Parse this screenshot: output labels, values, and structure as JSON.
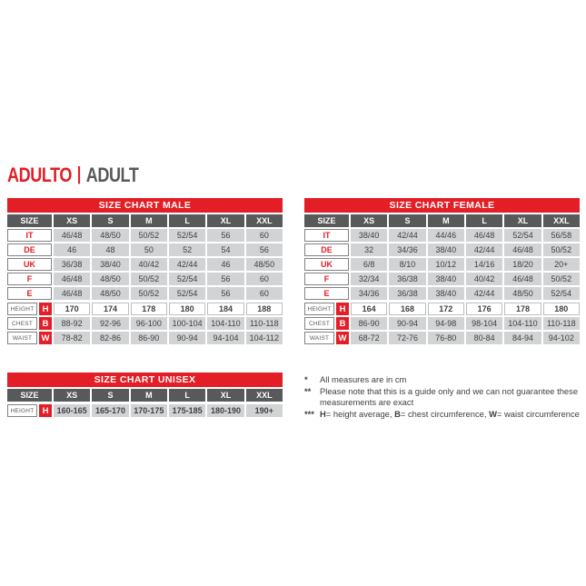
{
  "page": {
    "title_primary": "ADULTO",
    "title_separator": "|",
    "title_secondary": "ADULT"
  },
  "colors": {
    "accent_red": "#e31e26",
    "header_gray": "#58595b",
    "cell_gray": "#d1d3d4",
    "text_dark": "#414042"
  },
  "tables": [
    {
      "id": "male",
      "title": "SIZE CHART MALE",
      "size_label": "SIZE",
      "columns": [
        "XS",
        "S",
        "M",
        "L",
        "XL",
        "XXL"
      ],
      "region_rows": [
        {
          "label": "IT",
          "values": [
            "46/48",
            "48/50",
            "50/52",
            "52/54",
            "56",
            "60"
          ]
        },
        {
          "label": "DE",
          "values": [
            "46",
            "48",
            "50",
            "52",
            "54",
            "56"
          ]
        },
        {
          "label": "UK",
          "values": [
            "36/38",
            "38/40",
            "40/42",
            "42/44",
            "46",
            "48/50"
          ]
        },
        {
          "label": "F",
          "values": [
            "46/48",
            "48/50",
            "50/52",
            "52/54",
            "56",
            "60"
          ]
        },
        {
          "label": "E",
          "values": [
            "46/48",
            "48/50",
            "50/52",
            "52/54",
            "56",
            "60"
          ]
        }
      ],
      "measure_rows": [
        {
          "label": "HEIGHT",
          "letter": "H",
          "variant": "white-bold",
          "values": [
            "170",
            "174",
            "178",
            "180",
            "184",
            "188"
          ]
        },
        {
          "label": "CHEST",
          "letter": "B",
          "variant": "gray",
          "values": [
            "88-92",
            "92-96",
            "96-100",
            "100-104",
            "104-110",
            "110-118"
          ]
        },
        {
          "label": "WAIST",
          "letter": "W",
          "variant": "gray",
          "values": [
            "78-82",
            "82-86",
            "86-90",
            "90-94",
            "94-104",
            "104-112"
          ]
        }
      ]
    },
    {
      "id": "female",
      "title": "SIZE CHART FEMALE",
      "size_label": "SIZE",
      "columns": [
        "XS",
        "S",
        "M",
        "L",
        "XL",
        "XXL"
      ],
      "region_rows": [
        {
          "label": "IT",
          "values": [
            "38/40",
            "42/44",
            "44/46",
            "46/48",
            "52/54",
            "56/58"
          ]
        },
        {
          "label": "DE",
          "values": [
            "32",
            "34/36",
            "38/40",
            "42/44",
            "46/48",
            "50/52"
          ]
        },
        {
          "label": "UK",
          "values": [
            "6/8",
            "8/10",
            "10/12",
            "14/16",
            "18/20",
            "20+"
          ]
        },
        {
          "label": "F",
          "values": [
            "32/34",
            "36/38",
            "38/40",
            "40/42",
            "46/48",
            "50/52"
          ]
        },
        {
          "label": "E",
          "values": [
            "34/36",
            "36/38",
            "38/40",
            "42/44",
            "48/50",
            "52/54"
          ]
        }
      ],
      "measure_rows": [
        {
          "label": "HEIGHT",
          "letter": "H",
          "variant": "white-bold",
          "values": [
            "164",
            "168",
            "172",
            "176",
            "178",
            "180"
          ]
        },
        {
          "label": "CHEST",
          "letter": "B",
          "variant": "gray",
          "values": [
            "86-90",
            "90-94",
            "94-98",
            "98-104",
            "104-110",
            "110-118"
          ]
        },
        {
          "label": "WAIST",
          "letter": "W",
          "variant": "gray",
          "values": [
            "68-72",
            "72-76",
            "76-80",
            "80-84",
            "84-94",
            "94-102"
          ]
        }
      ]
    },
    {
      "id": "unisex",
      "title": "SIZE CHART UNISEX",
      "size_label": "SIZE",
      "columns": [
        "XS",
        "S",
        "M",
        "L",
        "XL",
        "XXL"
      ],
      "region_rows": [],
      "measure_rows": [
        {
          "label": "HEIGHT",
          "letter": "H",
          "variant": "gray-bold",
          "values": [
            "160-165",
            "165-170",
            "170-175",
            "175-185",
            "180-190",
            "190+"
          ]
        }
      ]
    }
  ],
  "notes": [
    {
      "marker": "*",
      "segments": [
        {
          "text": "All measures are in cm",
          "bold": false
        }
      ]
    },
    {
      "marker": "**",
      "segments": [
        {
          "text": "Please note that this is a guide only and we can not guarantee these measurements are exact",
          "bold": false
        }
      ]
    },
    {
      "marker": "***",
      "segments": [
        {
          "text": "H",
          "bold": true
        },
        {
          "text": "= height average, ",
          "bold": false
        },
        {
          "text": "B",
          "bold": true
        },
        {
          "text": "= chest circumference, ",
          "bold": false
        },
        {
          "text": "W",
          "bold": true
        },
        {
          "text": "= waist circumference",
          "bold": false
        }
      ]
    }
  ]
}
